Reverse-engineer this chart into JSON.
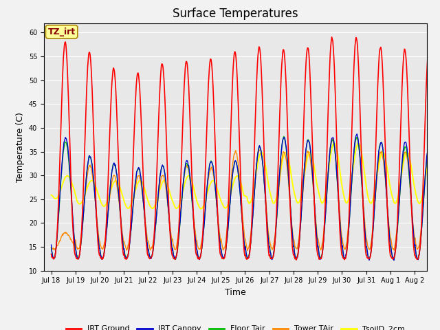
{
  "title": "Surface Temperatures",
  "xlabel": "Time",
  "ylabel": "Temperature (C)",
  "ylim": [
    10,
    62
  ],
  "xlim_days": 15.5,
  "annotation_text": "TZ_irt",
  "annotation_bg": "#FFFF99",
  "annotation_border": "#AA8800",
  "plot_bg": "#E8E8E8",
  "fig_bg": "#F2F2F2",
  "grid_color": "white",
  "series": [
    {
      "label": "IRT Ground",
      "color": "#FF0000",
      "lw": 1.2
    },
    {
      "label": "IRT Canopy",
      "color": "#0000CC",
      "lw": 1.0
    },
    {
      "label": "Floor Tair",
      "color": "#00BB00",
      "lw": 1.0
    },
    {
      "label": "Tower TAir",
      "color": "#FF8800",
      "lw": 1.0
    },
    {
      "label": "TsoilD_2cm",
      "color": "#FFFF00",
      "lw": 1.4
    }
  ],
  "x_tick_labels": [
    "Jul 18",
    "Jul 19",
    "Jul 20",
    "Jul 21",
    "Jul 22",
    "Jul 23",
    "Jul 24",
    "Jul 25",
    "Jul 26",
    "Jul 27",
    "Jul 28",
    "Jul 29",
    "Jul 30",
    "Jul 31",
    "Aug 1",
    "Aug 2"
  ],
  "x_tick_positions": [
    0,
    1,
    2,
    3,
    4,
    5,
    6,
    7,
    8,
    9,
    10,
    11,
    12,
    13,
    14,
    15
  ],
  "n_days": 16,
  "n_per_day": 48,
  "irt_ground_min": 12.5,
  "irt_ground_peaks": [
    58,
    56,
    52.5,
    51.5,
    53.5,
    54,
    54.5,
    56,
    57,
    56.5,
    57,
    59,
    59,
    57,
    56.5,
    57
  ],
  "canopy_peaks": [
    38,
    34,
    32.5,
    31.5,
    32,
    33,
    33,
    33,
    36,
    38,
    37.5,
    38,
    38.5,
    37,
    37,
    37
  ],
  "floor_peaks": [
    37,
    34,
    32.5,
    31.5,
    32,
    32.5,
    33,
    33,
    36,
    38,
    37.5,
    37.5,
    38,
    37,
    36,
    36
  ],
  "tower_peaks": [
    18,
    32,
    30,
    30,
    30,
    32,
    31.5,
    35,
    35.5,
    35,
    35,
    37.5,
    38,
    35,
    35,
    36
  ],
  "soil_peaks": [
    30,
    29,
    29,
    29,
    29,
    30,
    29,
    30,
    35,
    35,
    35,
    37,
    37,
    35,
    35,
    35
  ],
  "soil_mins": [
    25,
    24,
    23.5,
    23,
    23,
    23,
    23,
    23,
    24,
    24,
    24,
    24,
    24,
    24,
    24,
    24
  ],
  "canopy_min": 12.5,
  "tower_min": 14.5,
  "canopy_peak_hour": 14.5,
  "soil_peak_hour": 16.0,
  "title_fontsize": 12,
  "tick_fontsize": 7,
  "ylabel_fontsize": 9,
  "xlabel_fontsize": 9,
  "legend_fontsize": 8
}
